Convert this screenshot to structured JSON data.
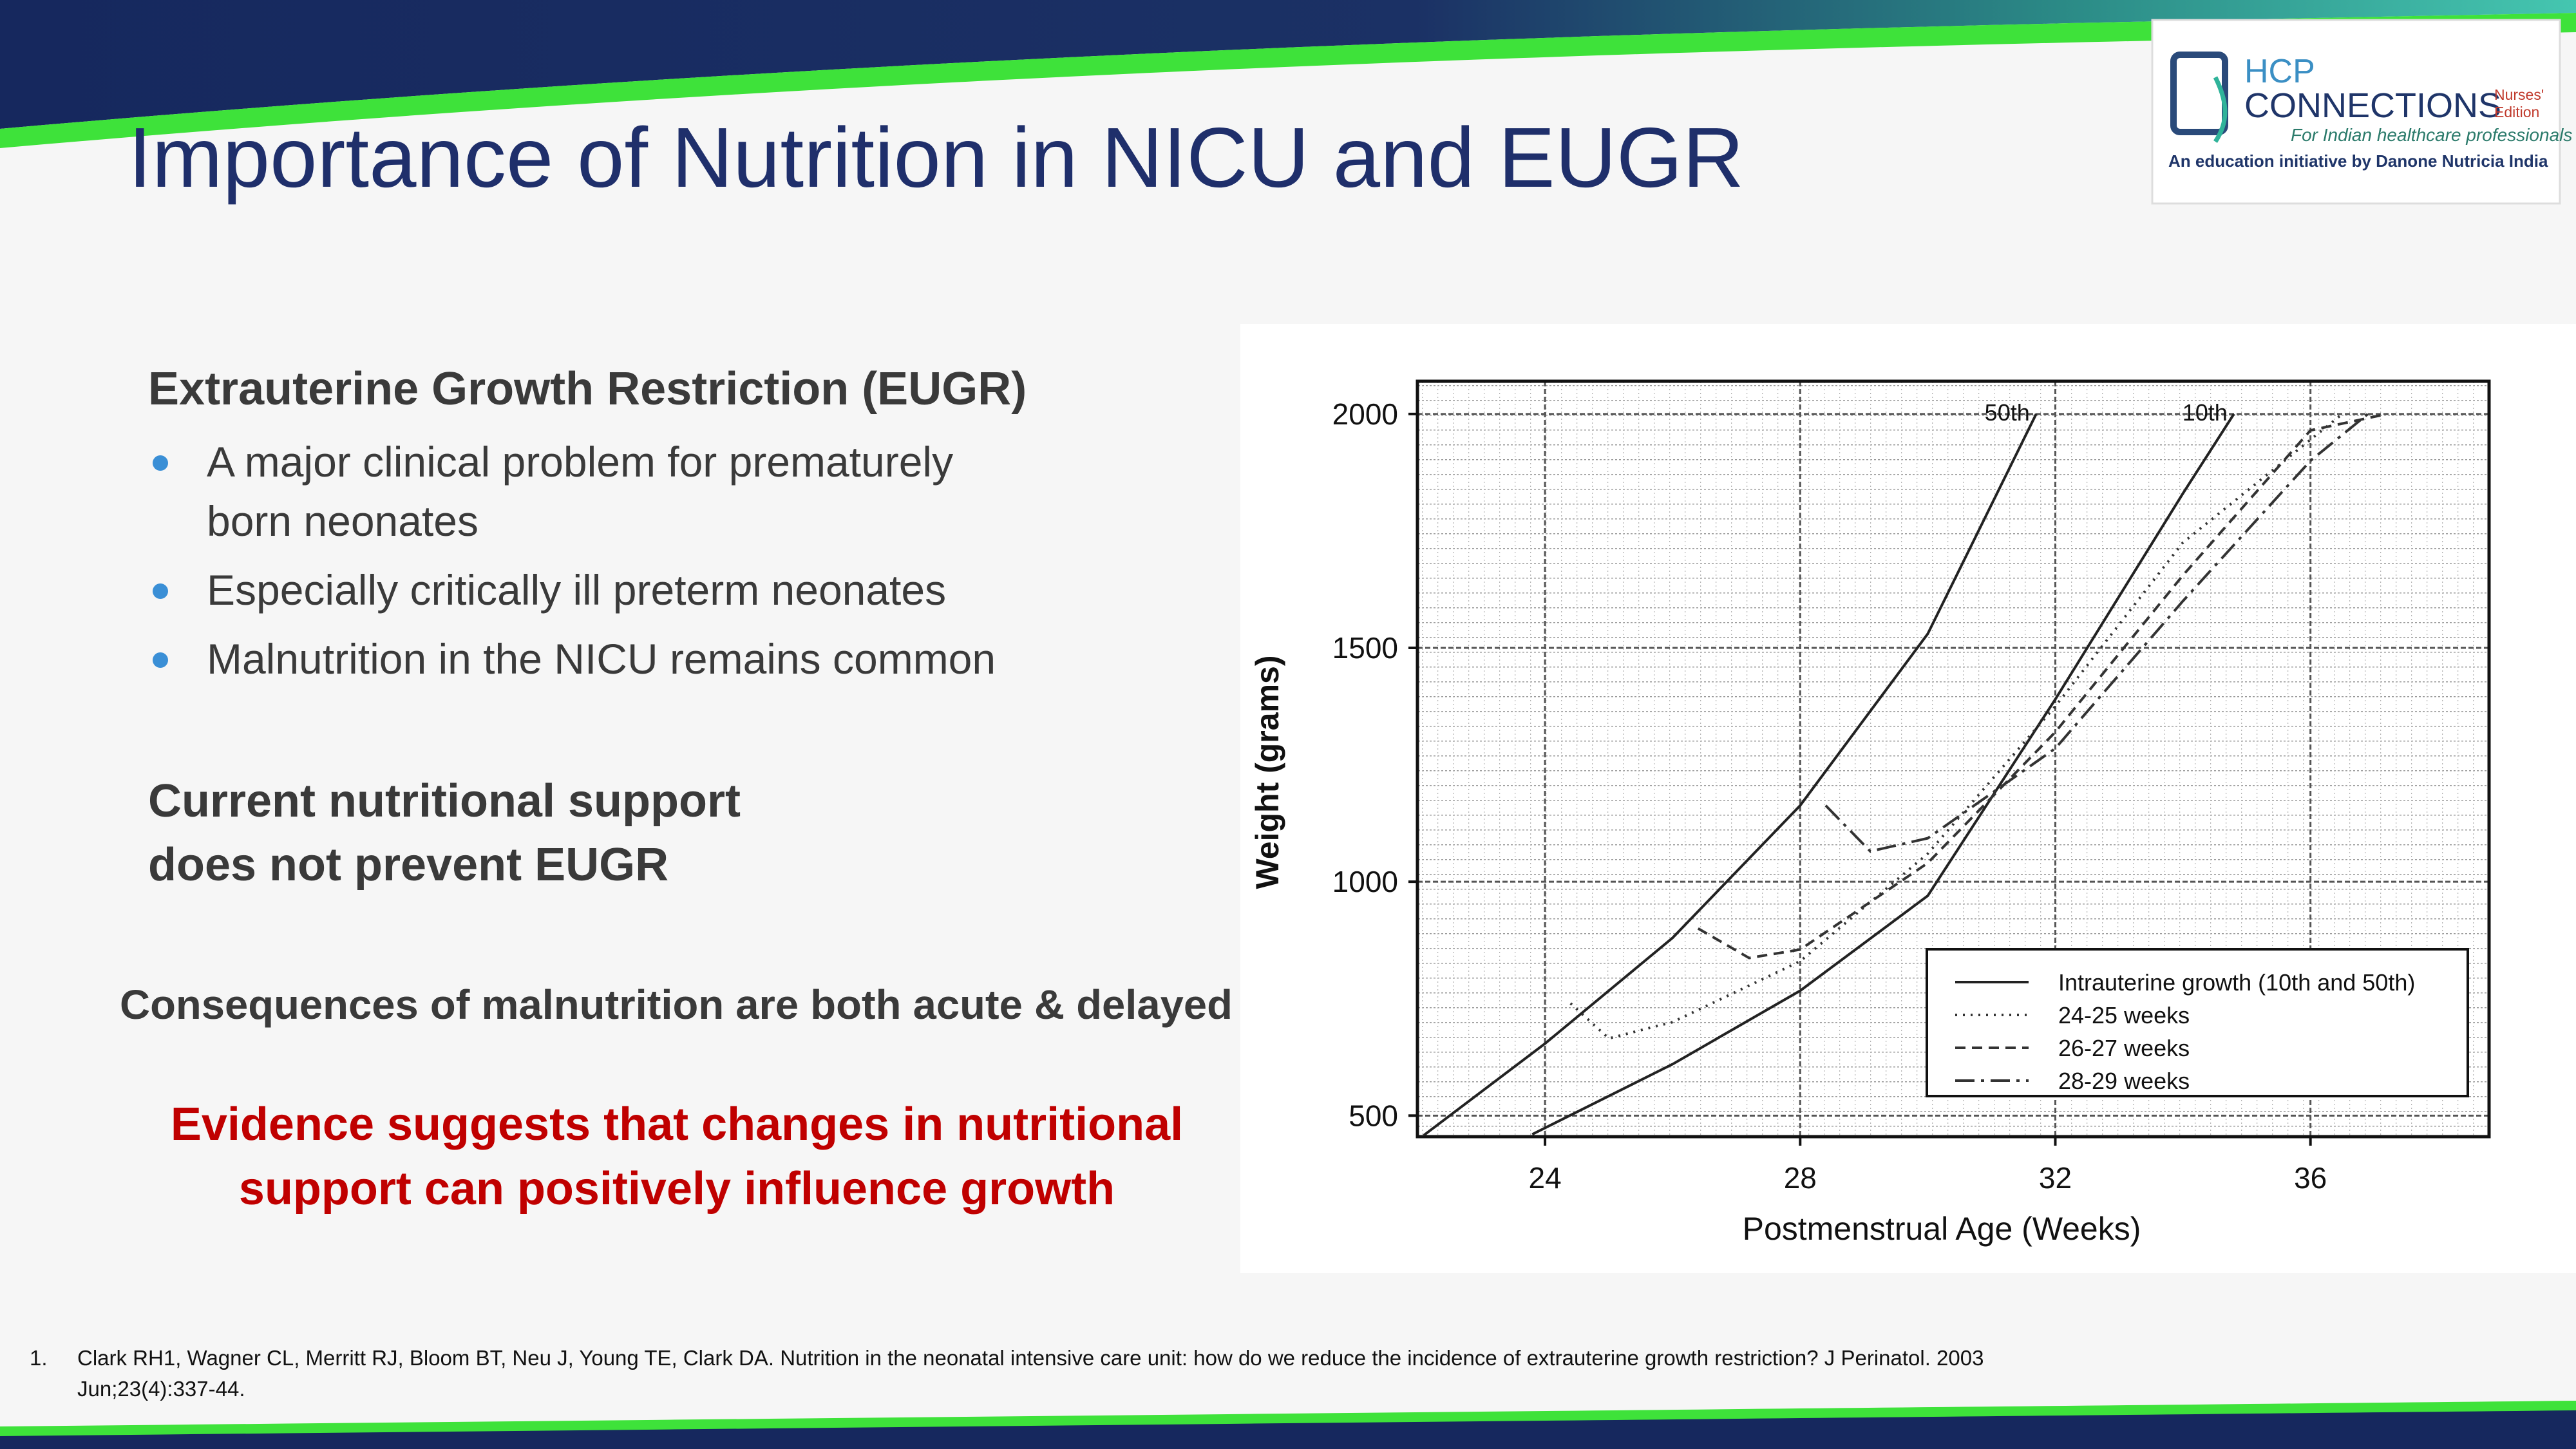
{
  "slide": {
    "title": "Importance of Nutrition in NICU and EUGR",
    "logo": {
      "hcp": "HCP",
      "connections": "CONNECTIONS",
      "edition": [
        "Nurses'",
        "Edition"
      ],
      "tagline": "For Indian healthcare professionals",
      "initiative": "An education initiative by Danone Nutricia India"
    },
    "heading": "Extrauterine Growth Restriction (EUGR)",
    "bullets": [
      [
        "A major clinical problem for prematurely",
        "born neonates"
      ],
      [
        "Especially critically ill preterm neonates"
      ],
      [
        "Malnutrition in the NICU remains common"
      ]
    ],
    "statement": [
      "Current nutritional support",
      "does not prevent EUGR"
    ],
    "consequences": "Consequences of malnutrition are both acute & delayed",
    "evidence": [
      "Evidence suggests that changes in nutritional",
      "support can positively influence growth"
    ],
    "reference": {
      "number": "1.",
      "lines": [
        "Clark RH1, Wagner CL, Merritt RJ, Bloom BT, Neu J, Young TE, Clark DA. Nutrition in the neonatal intensive care unit: how do we reduce the incidence of extrauterine growth restriction? J Perinatol. 2003",
        "Jun;23(4):337-44."
      ]
    }
  },
  "chart_data": {
    "type": "line",
    "x_label": "Postmenstrual Age (Weeks)",
    "y_label": "Weight (grams)",
    "xlim": [
      22,
      38.8
    ],
    "xticks": [
      24,
      28,
      32,
      36
    ],
    "ylim": [
      455,
      2070
    ],
    "yticks": [
      500,
      1000,
      1500,
      2000
    ],
    "grid": true,
    "legend": "bottom-right",
    "series": [
      {
        "name": "Intrauterine growth (10th and 50th)",
        "color": "#222222",
        "dash": "solid",
        "curves": [
          {
            "label": "50th",
            "x": [
              22.1,
              24,
              26,
              28,
              30,
              31.7
            ],
            "values": [
              458,
              654,
              880,
              1163,
              1530,
              2000
            ]
          },
          {
            "label": "10th",
            "x": [
              23.8,
              26,
              28,
              30,
              32,
              34,
              34.8
            ],
            "values": [
              460,
              610,
              767,
              970,
              1390,
              1830,
              2000
            ]
          }
        ]
      },
      {
        "name": "24-25 weeks",
        "color": "#333333",
        "dash": "dotted",
        "x": [
          24.4,
          25,
          26,
          28,
          30,
          32,
          34,
          36.5
        ],
        "values": [
          740,
          665,
          700,
          830,
          1060,
          1375,
          1725,
          2000
        ]
      },
      {
        "name": "26-27 weeks",
        "color": "#333333",
        "dash": "dashed",
        "x": [
          26.4,
          27.2,
          28,
          30,
          32,
          34,
          36,
          37.2
        ],
        "values": [
          900,
          837,
          855,
          1040,
          1320,
          1655,
          1965,
          2000
        ]
      },
      {
        "name": "28-29 weeks",
        "color": "#333333",
        "dash": "dashdot",
        "x": [
          28.4,
          29.1,
          30,
          32,
          34,
          36,
          36.9
        ],
        "values": [
          1163,
          1065,
          1093,
          1285,
          1600,
          1900,
          2000
        ]
      }
    ]
  }
}
